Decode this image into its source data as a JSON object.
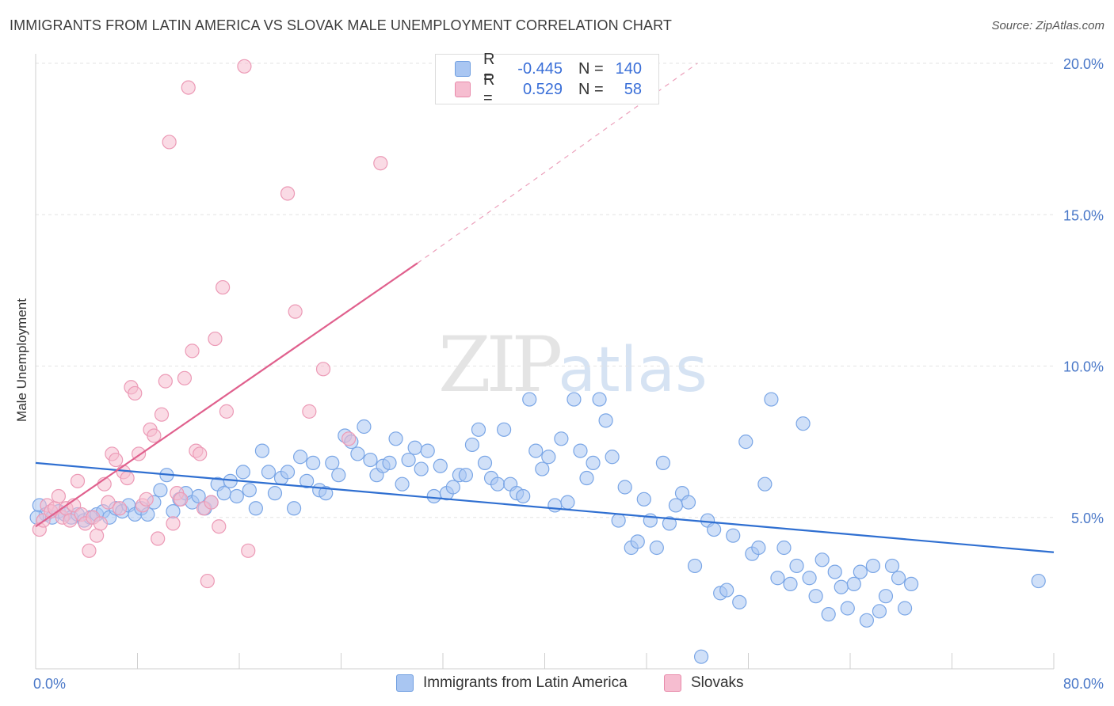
{
  "title": "IMMIGRANTS FROM LATIN AMERICA VS SLOVAK MALE UNEMPLOYMENT CORRELATION CHART",
  "source": "Source: ZipAtlas.com",
  "watermark": {
    "zip": "ZIP",
    "atlas": "atlas"
  },
  "legend": {
    "r_label": "R =",
    "n_label": "N =",
    "rows": [
      {
        "r": "-0.445",
        "n": "140",
        "color": "#a9c6f2",
        "border": "#6f9ee0"
      },
      {
        "r": "0.529",
        "n": "58",
        "color": "#f6bdd0",
        "border": "#e88aaa"
      }
    ]
  },
  "chart_data": {
    "type": "scatter",
    "title": "IMMIGRANTS FROM LATIN AMERICA VS SLOVAK MALE UNEMPLOYMENT CORRELATION CHART",
    "xlabel": "",
    "ylabel": "Male Unemployment",
    "xlim": [
      0,
      80
    ],
    "ylim": [
      0,
      20
    ],
    "x_tick_labels": [
      "0.0%",
      "80.0%"
    ],
    "y_ticks": [
      5,
      10,
      15,
      20
    ],
    "y_tick_labels": [
      "5.0%",
      "10.0%",
      "15.0%",
      "20.0%"
    ],
    "grid": true,
    "series": [
      {
        "name": "Immigrants from Latin America",
        "color": "#a9c6f2",
        "stroke": "#7aa6e6",
        "trend_color": "#2f6fd1",
        "trend": {
          "x0": 0,
          "y0": 6.8,
          "x1": 80,
          "y1": 3.85,
          "dash_to": null
        },
        "points": [
          [
            0.3,
            5.4
          ],
          [
            0.8,
            5.1
          ],
          [
            1.3,
            5.0
          ],
          [
            1.8,
            5.2
          ],
          [
            2.3,
            5.1
          ],
          [
            2.8,
            5.0
          ],
          [
            3.3,
            5.1
          ],
          [
            3.8,
            4.9
          ],
          [
            4.3,
            5.0
          ],
          [
            4.8,
            5.1
          ],
          [
            5.3,
            5.2
          ],
          [
            5.8,
            5.0
          ],
          [
            6.3,
            5.3
          ],
          [
            6.8,
            5.2
          ],
          [
            7.3,
            5.4
          ],
          [
            7.8,
            5.1
          ],
          [
            8.3,
            5.3
          ],
          [
            8.8,
            5.1
          ],
          [
            9.3,
            5.5
          ],
          [
            9.8,
            5.9
          ],
          [
            10.3,
            6.4
          ],
          [
            10.8,
            5.2
          ],
          [
            11.3,
            5.6
          ],
          [
            11.8,
            5.8
          ],
          [
            12.3,
            5.5
          ],
          [
            12.8,
            5.7
          ],
          [
            13.3,
            5.3
          ],
          [
            13.8,
            5.5
          ],
          [
            14.3,
            6.1
          ],
          [
            14.8,
            5.8
          ],
          [
            15.3,
            6.2
          ],
          [
            15.8,
            5.7
          ],
          [
            16.3,
            6.5
          ],
          [
            16.8,
            5.9
          ],
          [
            17.3,
            5.3
          ],
          [
            17.8,
            7.2
          ],
          [
            18.3,
            6.5
          ],
          [
            18.8,
            5.8
          ],
          [
            19.3,
            6.3
          ],
          [
            19.8,
            6.5
          ],
          [
            20.3,
            5.3
          ],
          [
            20.8,
            7.0
          ],
          [
            21.3,
            6.2
          ],
          [
            21.8,
            6.8
          ],
          [
            22.3,
            5.9
          ],
          [
            22.8,
            5.8
          ],
          [
            23.3,
            6.8
          ],
          [
            23.8,
            6.4
          ],
          [
            24.3,
            7.7
          ],
          [
            24.8,
            7.5
          ],
          [
            25.3,
            7.1
          ],
          [
            25.8,
            8.0
          ],
          [
            26.3,
            6.9
          ],
          [
            26.8,
            6.4
          ],
          [
            27.3,
            6.7
          ],
          [
            27.8,
            6.8
          ],
          [
            28.3,
            7.6
          ],
          [
            28.8,
            6.1
          ],
          [
            29.3,
            6.9
          ],
          [
            29.8,
            7.3
          ],
          [
            30.3,
            6.6
          ],
          [
            30.8,
            7.2
          ],
          [
            31.3,
            5.7
          ],
          [
            31.8,
            6.7
          ],
          [
            32.3,
            5.8
          ],
          [
            32.8,
            6.0
          ],
          [
            33.3,
            6.4
          ],
          [
            33.8,
            6.4
          ],
          [
            34.3,
            7.4
          ],
          [
            34.8,
            7.9
          ],
          [
            35.3,
            6.8
          ],
          [
            35.8,
            6.3
          ],
          [
            36.3,
            6.1
          ],
          [
            36.8,
            7.9
          ],
          [
            37.3,
            6.1
          ],
          [
            37.8,
            5.8
          ],
          [
            38.3,
            5.7
          ],
          [
            38.8,
            8.9
          ],
          [
            39.3,
            7.2
          ],
          [
            39.8,
            6.6
          ],
          [
            40.3,
            7.0
          ],
          [
            40.8,
            5.4
          ],
          [
            41.3,
            7.6
          ],
          [
            41.8,
            5.5
          ],
          [
            42.3,
            8.9
          ],
          [
            42.8,
            7.2
          ],
          [
            43.3,
            6.3
          ],
          [
            43.8,
            6.8
          ],
          [
            44.3,
            8.9
          ],
          [
            44.8,
            8.2
          ],
          [
            45.3,
            7.0
          ],
          [
            45.8,
            4.9
          ],
          [
            46.3,
            6.0
          ],
          [
            46.8,
            4.0
          ],
          [
            47.3,
            4.2
          ],
          [
            47.8,
            5.6
          ],
          [
            48.3,
            4.9
          ],
          [
            48.8,
            4.0
          ],
          [
            49.3,
            6.8
          ],
          [
            49.8,
            4.8
          ],
          [
            50.3,
            5.4
          ],
          [
            50.8,
            5.8
          ],
          [
            51.3,
            5.5
          ],
          [
            51.8,
            3.4
          ],
          [
            52.3,
            0.4
          ],
          [
            52.8,
            4.9
          ],
          [
            53.3,
            4.6
          ],
          [
            53.8,
            2.5
          ],
          [
            54.3,
            2.6
          ],
          [
            54.8,
            4.4
          ],
          [
            55.3,
            2.2
          ],
          [
            55.8,
            7.5
          ],
          [
            56.3,
            3.8
          ],
          [
            56.8,
            4.0
          ],
          [
            57.3,
            6.1
          ],
          [
            57.8,
            8.9
          ],
          [
            58.3,
            3.0
          ],
          [
            58.8,
            4.0
          ],
          [
            59.3,
            2.8
          ],
          [
            59.8,
            3.4
          ],
          [
            60.3,
            8.1
          ],
          [
            60.8,
            3.0
          ],
          [
            61.3,
            2.4
          ],
          [
            61.8,
            3.6
          ],
          [
            62.3,
            1.8
          ],
          [
            62.8,
            3.2
          ],
          [
            63.3,
            2.7
          ],
          [
            63.8,
            2.0
          ],
          [
            64.3,
            2.8
          ],
          [
            64.8,
            3.2
          ],
          [
            65.3,
            1.6
          ],
          [
            65.8,
            3.4
          ],
          [
            66.3,
            1.9
          ],
          [
            66.8,
            2.4
          ],
          [
            67.3,
            3.4
          ],
          [
            67.8,
            3.0
          ],
          [
            68.3,
            2.0
          ],
          [
            68.8,
            2.8
          ],
          [
            78.8,
            2.9
          ],
          [
            0.1,
            5.0
          ]
        ]
      },
      {
        "name": "Slovaks",
        "color": "#f6bdd0",
        "stroke": "#ec9ab6",
        "trend_color": "#e0608d",
        "trend": {
          "x0": 0,
          "y0": 4.7,
          "x1": 30,
          "y1": 13.4,
          "dash_to": [
            52,
            20
          ]
        },
        "points": [
          [
            0.3,
            4.6
          ],
          [
            0.6,
            4.9
          ],
          [
            0.9,
            5.4
          ],
          [
            1.2,
            5.2
          ],
          [
            1.5,
            5.3
          ],
          [
            1.8,
            5.7
          ],
          [
            2.1,
            5.0
          ],
          [
            2.4,
            5.3
          ],
          [
            2.7,
            4.9
          ],
          [
            3.0,
            5.4
          ],
          [
            3.3,
            6.2
          ],
          [
            3.6,
            5.1
          ],
          [
            3.9,
            4.8
          ],
          [
            4.2,
            3.9
          ],
          [
            4.5,
            5.0
          ],
          [
            4.8,
            4.4
          ],
          [
            5.1,
            4.8
          ],
          [
            5.4,
            6.1
          ],
          [
            5.7,
            5.5
          ],
          [
            6.0,
            7.1
          ],
          [
            6.3,
            6.9
          ],
          [
            6.6,
            5.3
          ],
          [
            6.9,
            6.5
          ],
          [
            7.2,
            6.3
          ],
          [
            7.5,
            9.3
          ],
          [
            7.8,
            9.1
          ],
          [
            8.1,
            7.1
          ],
          [
            8.4,
            5.4
          ],
          [
            8.7,
            5.6
          ],
          [
            9.0,
            7.9
          ],
          [
            9.3,
            7.7
          ],
          [
            9.6,
            4.3
          ],
          [
            9.9,
            8.4
          ],
          [
            10.2,
            9.5
          ],
          [
            10.5,
            17.4
          ],
          [
            10.8,
            4.8
          ],
          [
            11.1,
            5.8
          ],
          [
            11.4,
            5.6
          ],
          [
            11.7,
            9.6
          ],
          [
            12.0,
            19.2
          ],
          [
            12.3,
            10.5
          ],
          [
            12.6,
            7.2
          ],
          [
            12.9,
            7.1
          ],
          [
            13.2,
            5.3
          ],
          [
            13.5,
            2.9
          ],
          [
            13.8,
            5.5
          ],
          [
            14.1,
            10.9
          ],
          [
            14.4,
            4.7
          ],
          [
            14.7,
            12.6
          ],
          [
            15.0,
            8.5
          ],
          [
            16.4,
            19.9
          ],
          [
            16.7,
            3.9
          ],
          [
            19.8,
            15.7
          ],
          [
            20.4,
            11.8
          ],
          [
            21.5,
            8.5
          ],
          [
            22.6,
            9.9
          ],
          [
            24.6,
            7.6
          ],
          [
            27.1,
            16.7
          ]
        ]
      }
    ]
  },
  "bottom_legend": [
    {
      "label": "Immigrants from Latin America",
      "color": "#a9c6f2",
      "border": "#6f9ee0"
    },
    {
      "label": "Slovaks",
      "color": "#f6bdd0",
      "border": "#e88aaa"
    }
  ]
}
